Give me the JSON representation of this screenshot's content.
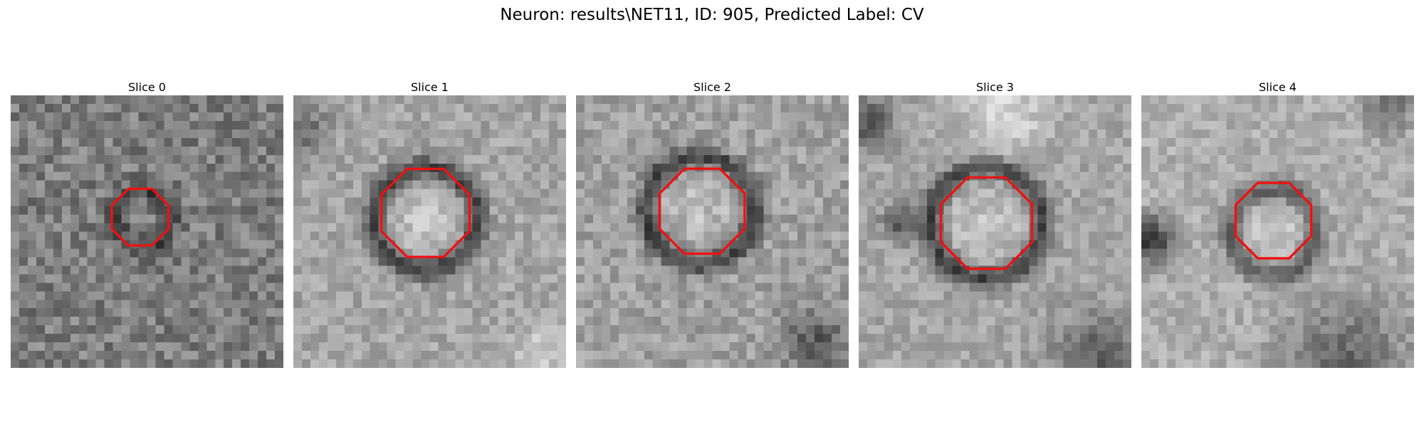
{
  "figure": {
    "title": "Neuron: results\\NET11, ID: 905, Predicted Label: CV"
  },
  "panels": [
    {
      "title": "Slice 0"
    },
    {
      "title": "Slice 1"
    },
    {
      "title": "Slice 2"
    },
    {
      "title": "Slice 3"
    },
    {
      "title": "Slice 4"
    }
  ],
  "colors": {
    "contour": "#ee1111",
    "background": "#ffffff"
  }
}
